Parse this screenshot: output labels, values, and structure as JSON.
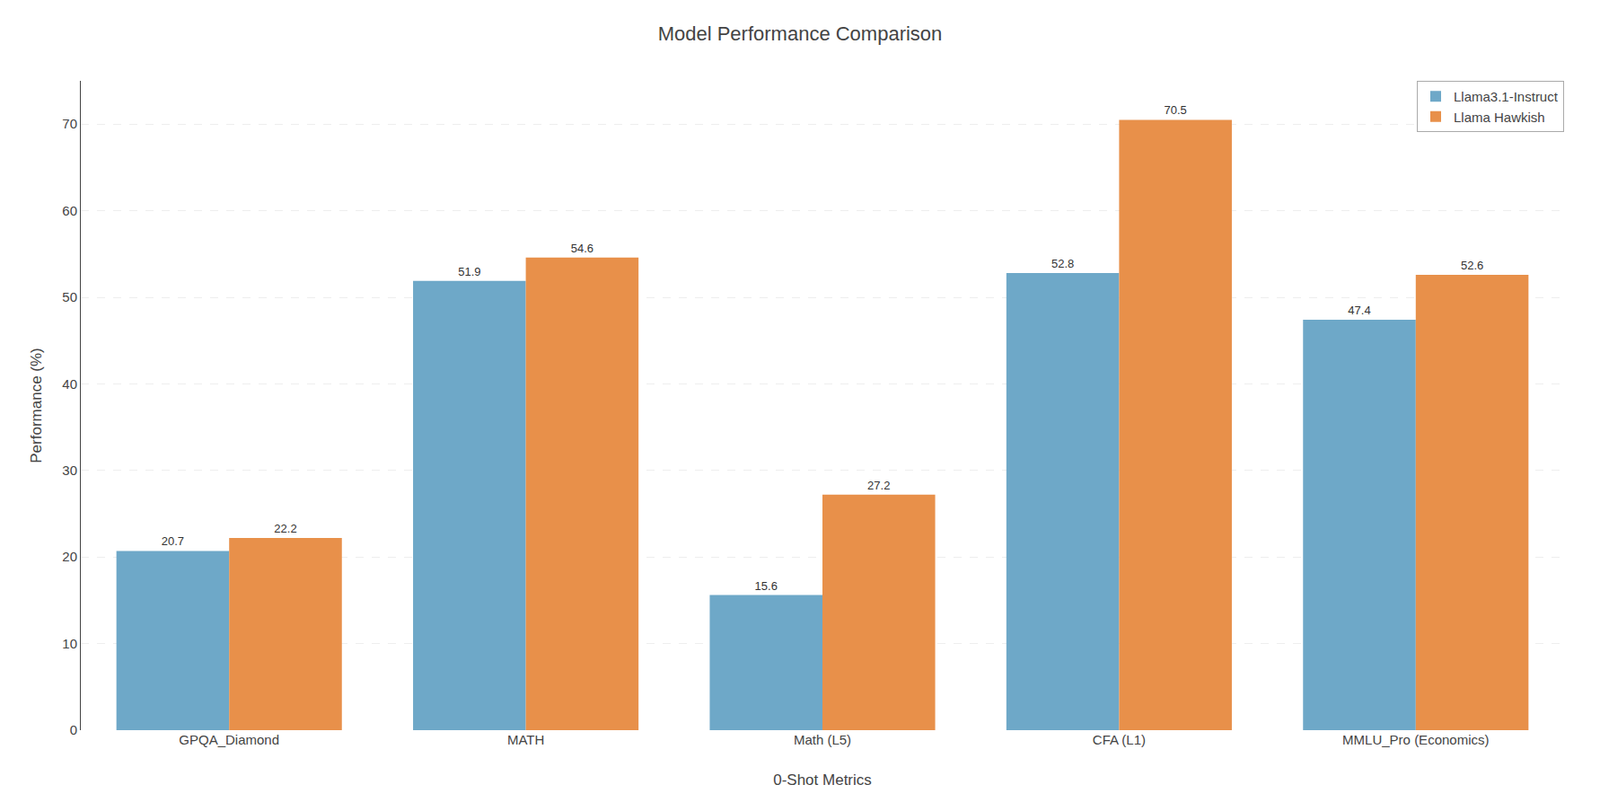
{
  "chart_data": {
    "type": "bar",
    "title": "Model Performance Comparison",
    "xlabel": "0-Shot Metrics",
    "ylabel": "Performance (%)",
    "categories": [
      "GPQA_Diamond",
      "MATH",
      "Math (L5)",
      "CFA (L1)",
      "MMLU_Pro (Economics)"
    ],
    "series": [
      {
        "name": "Llama3.1-Instruct",
        "color": "#6EA8C8",
        "values": [
          20.7,
          51.9,
          15.6,
          52.8,
          47.4
        ]
      },
      {
        "name": "Llama Hawkish",
        "color": "#E8904A",
        "values": [
          22.2,
          54.6,
          27.2,
          70.5,
          52.6
        ]
      }
    ],
    "ylim": [
      0,
      75
    ],
    "yticks": [
      0,
      10,
      20,
      30,
      40,
      50,
      60,
      70
    ],
    "grid": true,
    "legend": "upper right",
    "data_labels": true
  }
}
